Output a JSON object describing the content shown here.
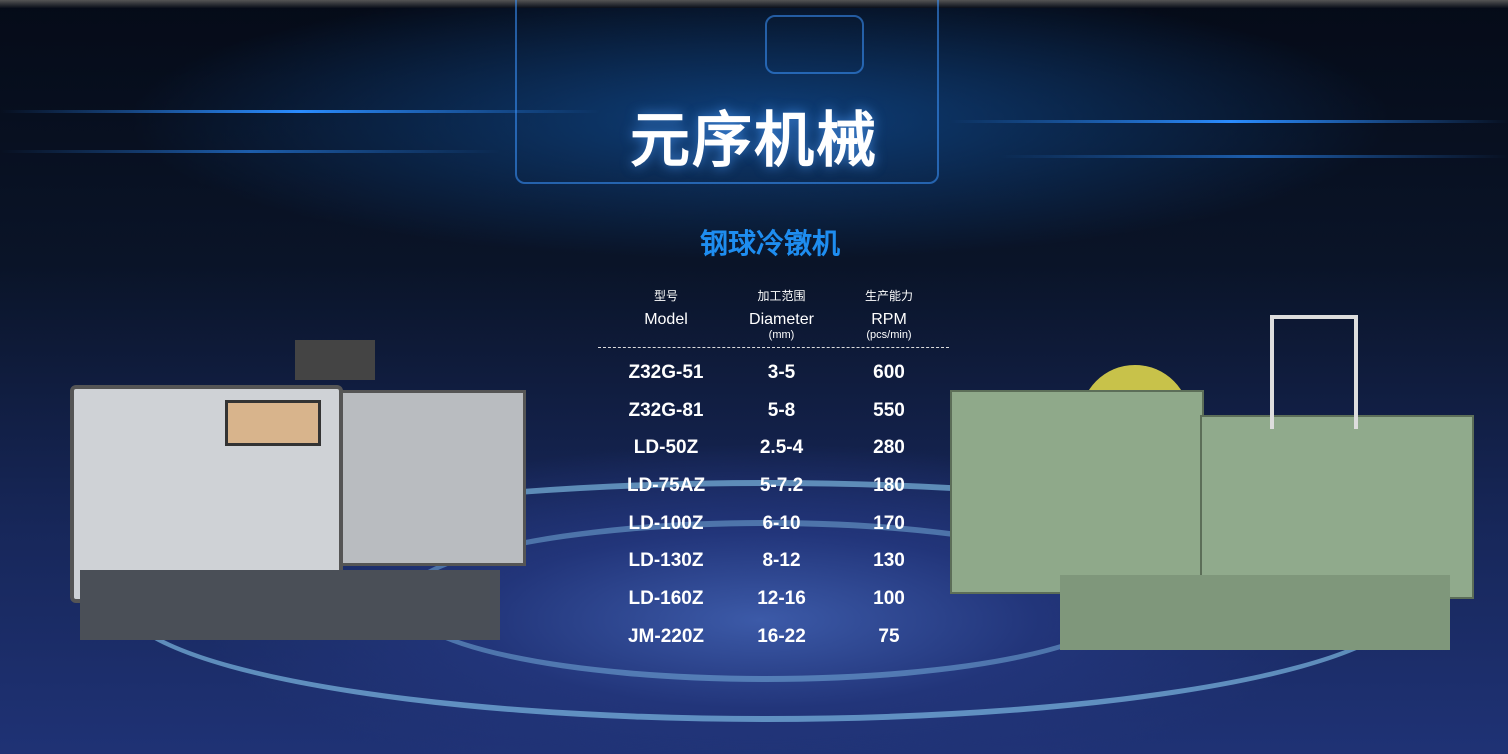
{
  "brand_title": "元序机械",
  "section_title": "钢球冷镦机",
  "table": {
    "headers": [
      {
        "cn": "型号",
        "en": "Model",
        "unit": ""
      },
      {
        "cn": "加工范围",
        "en": "Diameter",
        "unit": "(mm)"
      },
      {
        "cn": "生产能力",
        "en": "RPM",
        "unit": "(pcs/min)"
      }
    ],
    "rows": [
      {
        "model": "Z32G-51",
        "diameter": "3-5",
        "rpm": "600"
      },
      {
        "model": "Z32G-81",
        "diameter": "5-8",
        "rpm": "550"
      },
      {
        "model": "LD-50Z",
        "diameter": "2.5-4",
        "rpm": "280"
      },
      {
        "model": "LD-75AZ",
        "diameter": "5-7.2",
        "rpm": "180"
      },
      {
        "model": "LD-100Z",
        "diameter": "6-10",
        "rpm": "170"
      },
      {
        "model": "LD-130Z",
        "diameter": "8-12",
        "rpm": "130"
      },
      {
        "model": "LD-160Z",
        "diameter": "12-16",
        "rpm": "100"
      },
      {
        "model": "JM-220Z",
        "diameter": "16-22",
        "rpm": "75"
      }
    ]
  },
  "colors": {
    "title": "#ffffff",
    "section_title": "#1e8df0",
    "background": "#0a1428"
  }
}
